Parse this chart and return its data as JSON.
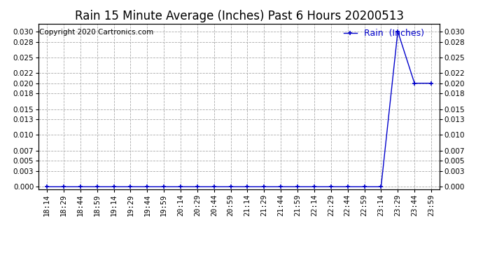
{
  "title": "Rain 15 Minute Average (Inches) Past 6 Hours 20200513",
  "copyright_text": "Copyright 2020 Cartronics.com",
  "legend_label": "Rain  (Inches)",
  "line_color": "#0000cc",
  "marker": "+",
  "marker_size": 5,
  "background_color": "#ffffff",
  "grid_color": "#aaaaaa",
  "x_labels": [
    "18:14",
    "18:29",
    "18:44",
    "18:59",
    "19:14",
    "19:29",
    "19:44",
    "19:59",
    "20:14",
    "20:29",
    "20:44",
    "20:59",
    "21:14",
    "21:29",
    "21:44",
    "21:59",
    "22:14",
    "22:29",
    "22:44",
    "22:59",
    "23:14",
    "23:29",
    "23:44",
    "23:59"
  ],
  "y_values": [
    0.0,
    0.0,
    0.0,
    0.0,
    0.0,
    0.0,
    0.0,
    0.0,
    0.0,
    0.0,
    0.0,
    0.0,
    0.0,
    0.0,
    0.0,
    0.0,
    0.0,
    0.0,
    0.0,
    0.0,
    0.0,
    0.03,
    0.02,
    0.02
  ],
  "y_ticks": [
    0.0,
    0.003,
    0.005,
    0.007,
    0.01,
    0.013,
    0.015,
    0.018,
    0.02,
    0.022,
    0.025,
    0.028,
    0.03
  ],
  "ylim": [
    -0.0005,
    0.0315
  ],
  "title_fontsize": 12,
  "copyright_fontsize": 7.5,
  "tick_fontsize": 7.5,
  "legend_fontsize": 9
}
